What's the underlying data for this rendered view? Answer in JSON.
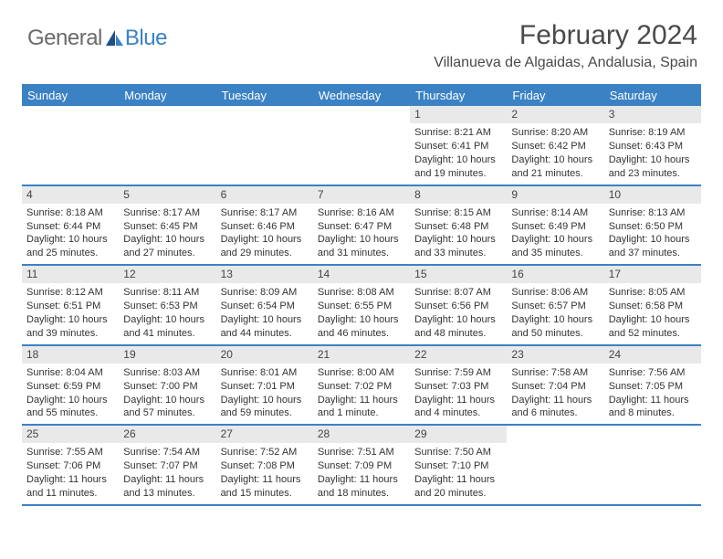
{
  "logo": {
    "left": "General",
    "right": "Blue"
  },
  "title": "February 2024",
  "location": "Villanueva de Algaidas, Andalusia, Spain",
  "colors": {
    "accent": "#3b82c4",
    "dayNumBg": "#e9e9e9",
    "text": "#333333",
    "headerText": "#4a4a4a"
  },
  "dayNames": [
    "Sunday",
    "Monday",
    "Tuesday",
    "Wednesday",
    "Thursday",
    "Friday",
    "Saturday"
  ],
  "weeks": [
    [
      {
        "n": "",
        "sr": "",
        "ss": "",
        "dl": ""
      },
      {
        "n": "",
        "sr": "",
        "ss": "",
        "dl": ""
      },
      {
        "n": "",
        "sr": "",
        "ss": "",
        "dl": ""
      },
      {
        "n": "",
        "sr": "",
        "ss": "",
        "dl": ""
      },
      {
        "n": "1",
        "sr": "Sunrise: 8:21 AM",
        "ss": "Sunset: 6:41 PM",
        "dl": "Daylight: 10 hours and 19 minutes."
      },
      {
        "n": "2",
        "sr": "Sunrise: 8:20 AM",
        "ss": "Sunset: 6:42 PM",
        "dl": "Daylight: 10 hours and 21 minutes."
      },
      {
        "n": "3",
        "sr": "Sunrise: 8:19 AM",
        "ss": "Sunset: 6:43 PM",
        "dl": "Daylight: 10 hours and 23 minutes."
      }
    ],
    [
      {
        "n": "4",
        "sr": "Sunrise: 8:18 AM",
        "ss": "Sunset: 6:44 PM",
        "dl": "Daylight: 10 hours and 25 minutes."
      },
      {
        "n": "5",
        "sr": "Sunrise: 8:17 AM",
        "ss": "Sunset: 6:45 PM",
        "dl": "Daylight: 10 hours and 27 minutes."
      },
      {
        "n": "6",
        "sr": "Sunrise: 8:17 AM",
        "ss": "Sunset: 6:46 PM",
        "dl": "Daylight: 10 hours and 29 minutes."
      },
      {
        "n": "7",
        "sr": "Sunrise: 8:16 AM",
        "ss": "Sunset: 6:47 PM",
        "dl": "Daylight: 10 hours and 31 minutes."
      },
      {
        "n": "8",
        "sr": "Sunrise: 8:15 AM",
        "ss": "Sunset: 6:48 PM",
        "dl": "Daylight: 10 hours and 33 minutes."
      },
      {
        "n": "9",
        "sr": "Sunrise: 8:14 AM",
        "ss": "Sunset: 6:49 PM",
        "dl": "Daylight: 10 hours and 35 minutes."
      },
      {
        "n": "10",
        "sr": "Sunrise: 8:13 AM",
        "ss": "Sunset: 6:50 PM",
        "dl": "Daylight: 10 hours and 37 minutes."
      }
    ],
    [
      {
        "n": "11",
        "sr": "Sunrise: 8:12 AM",
        "ss": "Sunset: 6:51 PM",
        "dl": "Daylight: 10 hours and 39 minutes."
      },
      {
        "n": "12",
        "sr": "Sunrise: 8:11 AM",
        "ss": "Sunset: 6:53 PM",
        "dl": "Daylight: 10 hours and 41 minutes."
      },
      {
        "n": "13",
        "sr": "Sunrise: 8:09 AM",
        "ss": "Sunset: 6:54 PM",
        "dl": "Daylight: 10 hours and 44 minutes."
      },
      {
        "n": "14",
        "sr": "Sunrise: 8:08 AM",
        "ss": "Sunset: 6:55 PM",
        "dl": "Daylight: 10 hours and 46 minutes."
      },
      {
        "n": "15",
        "sr": "Sunrise: 8:07 AM",
        "ss": "Sunset: 6:56 PM",
        "dl": "Daylight: 10 hours and 48 minutes."
      },
      {
        "n": "16",
        "sr": "Sunrise: 8:06 AM",
        "ss": "Sunset: 6:57 PM",
        "dl": "Daylight: 10 hours and 50 minutes."
      },
      {
        "n": "17",
        "sr": "Sunrise: 8:05 AM",
        "ss": "Sunset: 6:58 PM",
        "dl": "Daylight: 10 hours and 52 minutes."
      }
    ],
    [
      {
        "n": "18",
        "sr": "Sunrise: 8:04 AM",
        "ss": "Sunset: 6:59 PM",
        "dl": "Daylight: 10 hours and 55 minutes."
      },
      {
        "n": "19",
        "sr": "Sunrise: 8:03 AM",
        "ss": "Sunset: 7:00 PM",
        "dl": "Daylight: 10 hours and 57 minutes."
      },
      {
        "n": "20",
        "sr": "Sunrise: 8:01 AM",
        "ss": "Sunset: 7:01 PM",
        "dl": "Daylight: 10 hours and 59 minutes."
      },
      {
        "n": "21",
        "sr": "Sunrise: 8:00 AM",
        "ss": "Sunset: 7:02 PM",
        "dl": "Daylight: 11 hours and 1 minute."
      },
      {
        "n": "22",
        "sr": "Sunrise: 7:59 AM",
        "ss": "Sunset: 7:03 PM",
        "dl": "Daylight: 11 hours and 4 minutes."
      },
      {
        "n": "23",
        "sr": "Sunrise: 7:58 AM",
        "ss": "Sunset: 7:04 PM",
        "dl": "Daylight: 11 hours and 6 minutes."
      },
      {
        "n": "24",
        "sr": "Sunrise: 7:56 AM",
        "ss": "Sunset: 7:05 PM",
        "dl": "Daylight: 11 hours and 8 minutes."
      }
    ],
    [
      {
        "n": "25",
        "sr": "Sunrise: 7:55 AM",
        "ss": "Sunset: 7:06 PM",
        "dl": "Daylight: 11 hours and 11 minutes."
      },
      {
        "n": "26",
        "sr": "Sunrise: 7:54 AM",
        "ss": "Sunset: 7:07 PM",
        "dl": "Daylight: 11 hours and 13 minutes."
      },
      {
        "n": "27",
        "sr": "Sunrise: 7:52 AM",
        "ss": "Sunset: 7:08 PM",
        "dl": "Daylight: 11 hours and 15 minutes."
      },
      {
        "n": "28",
        "sr": "Sunrise: 7:51 AM",
        "ss": "Sunset: 7:09 PM",
        "dl": "Daylight: 11 hours and 18 minutes."
      },
      {
        "n": "29",
        "sr": "Sunrise: 7:50 AM",
        "ss": "Sunset: 7:10 PM",
        "dl": "Daylight: 11 hours and 20 minutes."
      },
      {
        "n": "",
        "sr": "",
        "ss": "",
        "dl": ""
      },
      {
        "n": "",
        "sr": "",
        "ss": "",
        "dl": ""
      }
    ]
  ]
}
